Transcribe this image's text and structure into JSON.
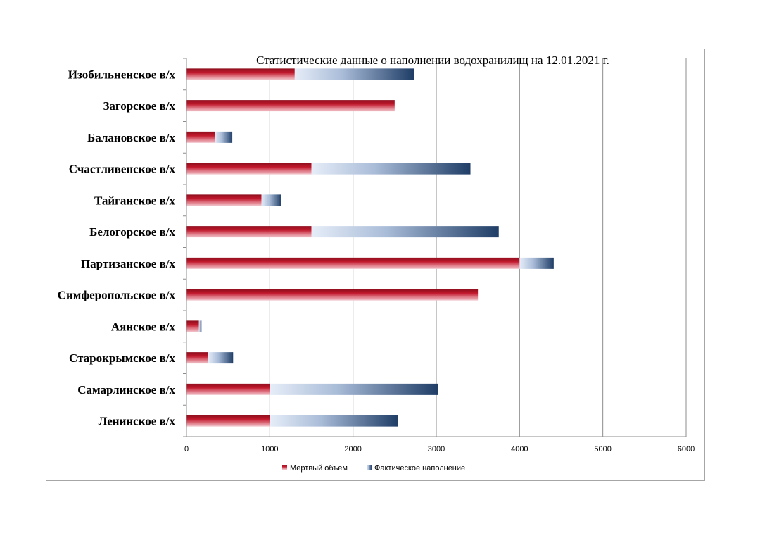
{
  "chart_data": {
    "type": "bar",
    "orientation": "horizontal",
    "stacked": true,
    "title": "Статистические данные о наполнении водохранилищ на 12.01.2021 г.",
    "categories": [
      "Изобильненское в/х",
      "Загорское в/х",
      "Балановское в/х",
      "Счастливенское в/х",
      "Тайганское в/х",
      "Белогорское в/х",
      "Партизанское в/х",
      "Симферопольское в/х",
      "Аянское в/х",
      "Старокрымское в/х",
      "Самарлинское в/х",
      "Ленинское в/х"
    ],
    "series": [
      {
        "name": "Мертвый объем",
        "color": "#c0182b",
        "values": [
          1300,
          2500,
          340,
          1500,
          900,
          1500,
          4000,
          3500,
          150,
          260,
          1000,
          1000
        ]
      },
      {
        "name": "Фактическое наполнение",
        "color": "#1f3d66",
        "values": [
          1430,
          0,
          210,
          1910,
          240,
          2250,
          410,
          0,
          30,
          300,
          2020,
          1540
        ]
      }
    ],
    "xlim": [
      0,
      6000
    ],
    "xticks": [
      0,
      1000,
      2000,
      3000,
      4000,
      5000,
      6000
    ],
    "xlabel": "",
    "ylabel": "",
    "grid": true,
    "legend": "bottom"
  }
}
